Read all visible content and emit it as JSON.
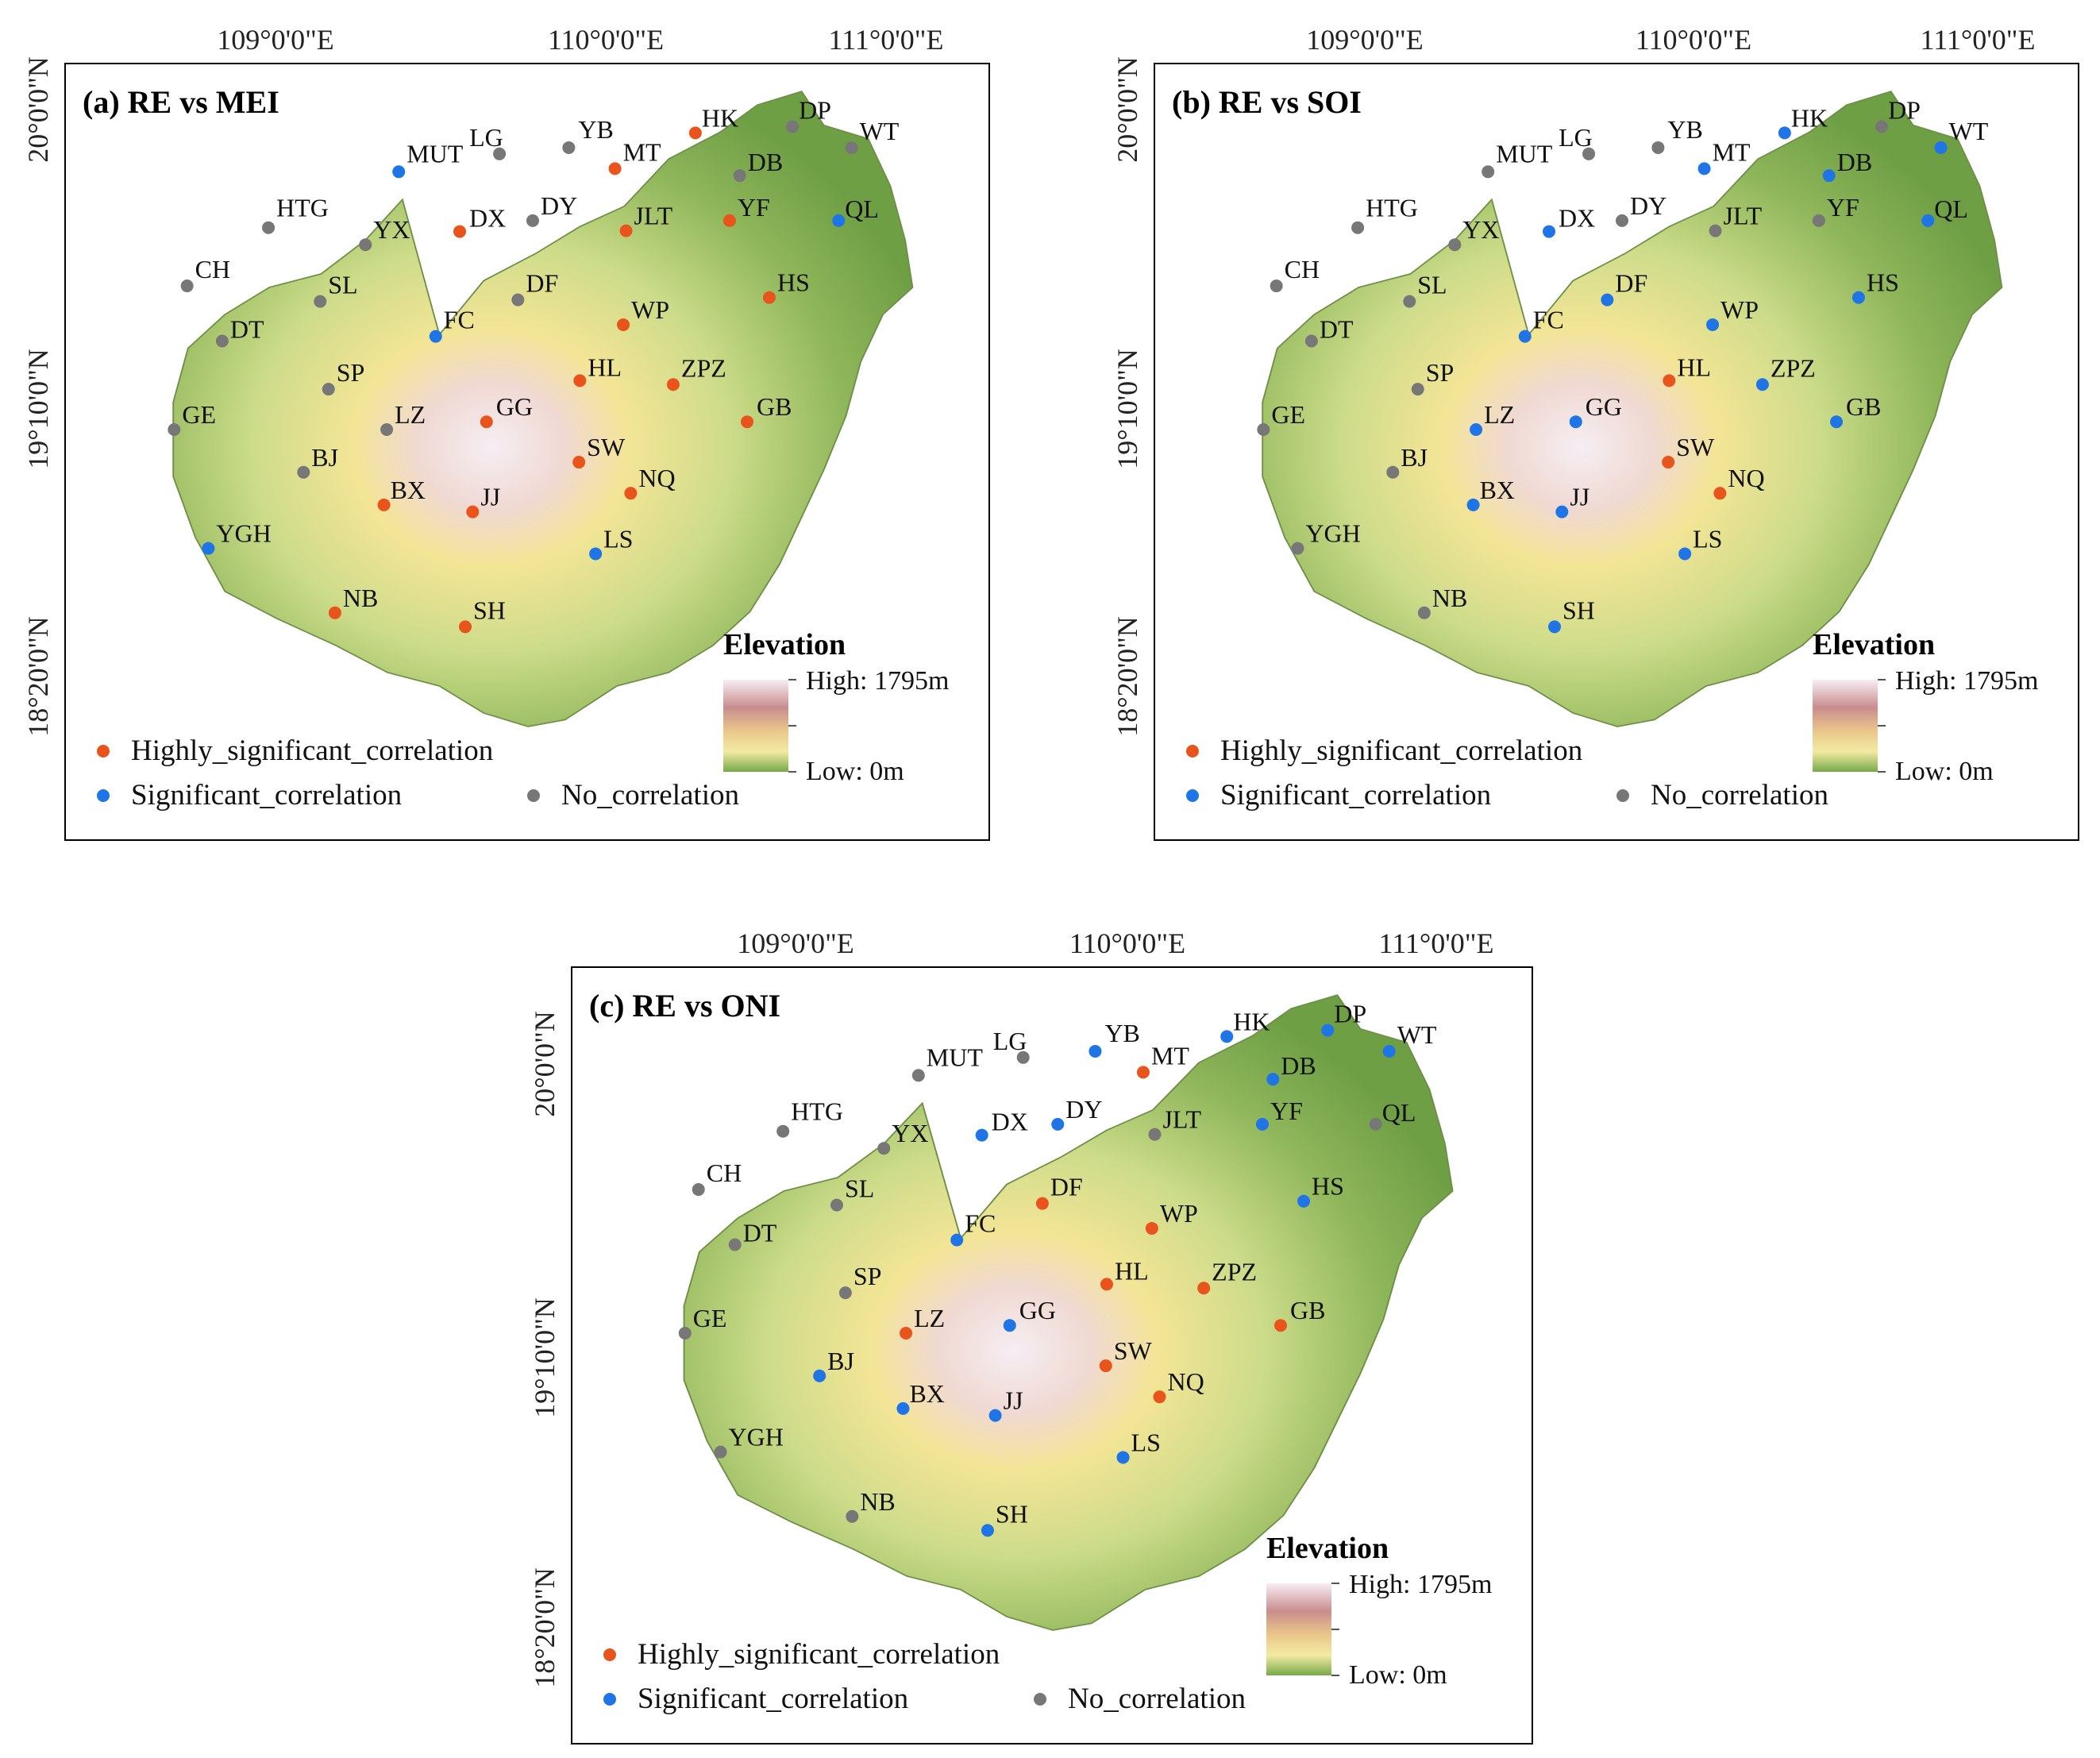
{
  "figure": {
    "colors": {
      "highly_significant": "#e8541b",
      "significant": "#1f75e6",
      "none": "#777777",
      "frame": "#000000",
      "land_low": "#7aa84b",
      "land_mid": "#f2e38a",
      "land_high": "#f7e9f1"
    },
    "legend": {
      "highly": "Highly_significant_correlation",
      "significant": "Significant_correlation",
      "none": "No_correlation",
      "elevation_title": "Elevation",
      "elevation_high": "High: 1795m",
      "elevation_low": "Low: 0m"
    },
    "lon_ticks": [
      "109°0'0\"E",
      "110°0'0\"E",
      "111°0'0\"E"
    ],
    "lat_ticks": [
      "20°0'0\"N",
      "19°10'0\"N",
      "18°20'0\"N"
    ]
  },
  "panels": [
    {
      "title": "(a) RE vs MEI",
      "stations": [
        {
          "name": "HK",
          "cls": "h"
        },
        {
          "name": "DP",
          "cls": "n"
        },
        {
          "name": "WT",
          "cls": "n"
        },
        {
          "name": "LG",
          "cls": "n"
        },
        {
          "name": "YB",
          "cls": "n"
        },
        {
          "name": "MUT",
          "cls": "s"
        },
        {
          "name": "MT",
          "cls": "h"
        },
        {
          "name": "DB",
          "cls": "n"
        },
        {
          "name": "HTG",
          "cls": "n"
        },
        {
          "name": "DX",
          "cls": "h"
        },
        {
          "name": "DY",
          "cls": "n"
        },
        {
          "name": "YF",
          "cls": "h"
        },
        {
          "name": "QL",
          "cls": "s"
        },
        {
          "name": "YX",
          "cls": "n"
        },
        {
          "name": "JLT",
          "cls": "h"
        },
        {
          "name": "CH",
          "cls": "n"
        },
        {
          "name": "SL",
          "cls": "n"
        },
        {
          "name": "DF",
          "cls": "n"
        },
        {
          "name": "HS",
          "cls": "h"
        },
        {
          "name": "DT",
          "cls": "n"
        },
        {
          "name": "FC",
          "cls": "s"
        },
        {
          "name": "WP",
          "cls": "h"
        },
        {
          "name": "SP",
          "cls": "n"
        },
        {
          "name": "HL",
          "cls": "h"
        },
        {
          "name": "ZPZ",
          "cls": "h"
        },
        {
          "name": "GE",
          "cls": "n"
        },
        {
          "name": "LZ",
          "cls": "n"
        },
        {
          "name": "GG",
          "cls": "h"
        },
        {
          "name": "GB",
          "cls": "h"
        },
        {
          "name": "BJ",
          "cls": "n"
        },
        {
          "name": "SW",
          "cls": "h"
        },
        {
          "name": "BX",
          "cls": "h"
        },
        {
          "name": "NQ",
          "cls": "h"
        },
        {
          "name": "JJ",
          "cls": "h"
        },
        {
          "name": "YGH",
          "cls": "s"
        },
        {
          "name": "LS",
          "cls": "s"
        },
        {
          "name": "NB",
          "cls": "h"
        },
        {
          "name": "SH",
          "cls": "h"
        }
      ]
    },
    {
      "title": "(b) RE vs SOI",
      "stations": [
        {
          "name": "HK",
          "cls": "s"
        },
        {
          "name": "DP",
          "cls": "n"
        },
        {
          "name": "WT",
          "cls": "s"
        },
        {
          "name": "LG",
          "cls": "n"
        },
        {
          "name": "YB",
          "cls": "n"
        },
        {
          "name": "MUT",
          "cls": "n"
        },
        {
          "name": "MT",
          "cls": "s"
        },
        {
          "name": "DB",
          "cls": "s"
        },
        {
          "name": "HTG",
          "cls": "n"
        },
        {
          "name": "DX",
          "cls": "s"
        },
        {
          "name": "DY",
          "cls": "n"
        },
        {
          "name": "YF",
          "cls": "n"
        },
        {
          "name": "QL",
          "cls": "s"
        },
        {
          "name": "YX",
          "cls": "n"
        },
        {
          "name": "JLT",
          "cls": "n"
        },
        {
          "name": "CH",
          "cls": "n"
        },
        {
          "name": "SL",
          "cls": "n"
        },
        {
          "name": "DF",
          "cls": "s"
        },
        {
          "name": "HS",
          "cls": "s"
        },
        {
          "name": "DT",
          "cls": "n"
        },
        {
          "name": "FC",
          "cls": "s"
        },
        {
          "name": "WP",
          "cls": "s"
        },
        {
          "name": "SP",
          "cls": "n"
        },
        {
          "name": "HL",
          "cls": "h"
        },
        {
          "name": "ZPZ",
          "cls": "s"
        },
        {
          "name": "GE",
          "cls": "n"
        },
        {
          "name": "LZ",
          "cls": "s"
        },
        {
          "name": "GG",
          "cls": "s"
        },
        {
          "name": "GB",
          "cls": "s"
        },
        {
          "name": "BJ",
          "cls": "n"
        },
        {
          "name": "SW",
          "cls": "h"
        },
        {
          "name": "BX",
          "cls": "s"
        },
        {
          "name": "NQ",
          "cls": "h"
        },
        {
          "name": "JJ",
          "cls": "s"
        },
        {
          "name": "YGH",
          "cls": "n"
        },
        {
          "name": "LS",
          "cls": "s"
        },
        {
          "name": "NB",
          "cls": "n"
        },
        {
          "name": "SH",
          "cls": "s"
        }
      ]
    },
    {
      "title": "(c) RE vs ONI",
      "stations": [
        {
          "name": "HK",
          "cls": "s"
        },
        {
          "name": "DP",
          "cls": "s"
        },
        {
          "name": "WT",
          "cls": "s"
        },
        {
          "name": "LG",
          "cls": "n"
        },
        {
          "name": "YB",
          "cls": "s"
        },
        {
          "name": "MUT",
          "cls": "n"
        },
        {
          "name": "MT",
          "cls": "h"
        },
        {
          "name": "DB",
          "cls": "s"
        },
        {
          "name": "HTG",
          "cls": "n"
        },
        {
          "name": "DX",
          "cls": "s"
        },
        {
          "name": "DY",
          "cls": "s"
        },
        {
          "name": "YF",
          "cls": "s"
        },
        {
          "name": "QL",
          "cls": "n"
        },
        {
          "name": "YX",
          "cls": "n"
        },
        {
          "name": "JLT",
          "cls": "n"
        },
        {
          "name": "CH",
          "cls": "n"
        },
        {
          "name": "SL",
          "cls": "n"
        },
        {
          "name": "DF",
          "cls": "h"
        },
        {
          "name": "HS",
          "cls": "s"
        },
        {
          "name": "DT",
          "cls": "n"
        },
        {
          "name": "FC",
          "cls": "s"
        },
        {
          "name": "WP",
          "cls": "h"
        },
        {
          "name": "SP",
          "cls": "n"
        },
        {
          "name": "HL",
          "cls": "h"
        },
        {
          "name": "ZPZ",
          "cls": "h"
        },
        {
          "name": "GE",
          "cls": "n"
        },
        {
          "name": "LZ",
          "cls": "h"
        },
        {
          "name": "GG",
          "cls": "s"
        },
        {
          "name": "GB",
          "cls": "h"
        },
        {
          "name": "BJ",
          "cls": "s"
        },
        {
          "name": "SW",
          "cls": "h"
        },
        {
          "name": "BX",
          "cls": "s"
        },
        {
          "name": "NQ",
          "cls": "h"
        },
        {
          "name": "JJ",
          "cls": "s"
        },
        {
          "name": "YGH",
          "cls": "n"
        },
        {
          "name": "LS",
          "cls": "s"
        },
        {
          "name": "NB",
          "cls": "n"
        },
        {
          "name": "SH",
          "cls": "s"
        }
      ]
    }
  ]
}
